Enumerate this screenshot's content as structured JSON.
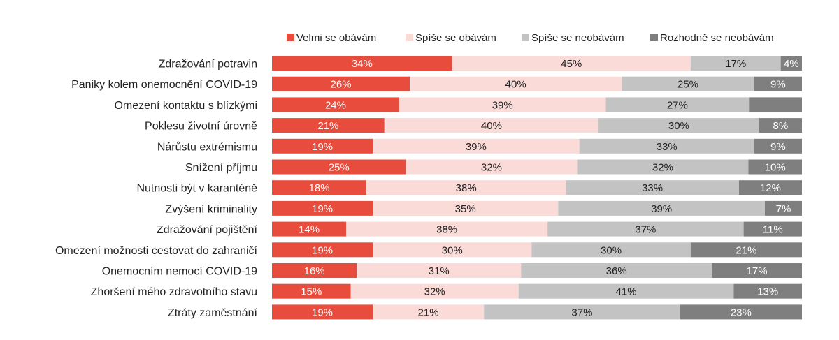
{
  "chart_data": {
    "type": "bar",
    "orientation": "horizontal",
    "stacked": "100%",
    "legend_position": "top",
    "grid": false,
    "categories": [
      "Zdražování potravin",
      "Paniky kolem onemocnění COVID-19",
      "Omezení kontaktu s blízkými",
      "Poklesu životní úrovně",
      "Nárůstu extrémismu",
      "Snížení příjmu",
      "Nutnosti být v karanténě",
      "Zvýšení kriminality",
      "Zdražování pojištění",
      "Omezení možnosti cestovat do zahraničí",
      "Onemocním nemocí COVID-19",
      "Zhoršení mého zdravotního stavu",
      "Ztráty zaměstnání"
    ],
    "series": [
      {
        "name": "Velmi se obávám",
        "color": "#e84c3d",
        "label_color": "#ffffff",
        "values": [
          34,
          26,
          24,
          21,
          19,
          25,
          18,
          19,
          14,
          19,
          16,
          15,
          19
        ],
        "labels": [
          "34%",
          "26%",
          "24%",
          "21%",
          "19%",
          "25%",
          "18%",
          "19%",
          "14%",
          "19%",
          "16%",
          "15%",
          "19%"
        ]
      },
      {
        "name": "Spíše se obávám",
        "color": "#fadbd8",
        "label_color": "#222222",
        "values": [
          45,
          40,
          39,
          40,
          39,
          32,
          38,
          35,
          38,
          30,
          31,
          32,
          21
        ],
        "labels": [
          "45%",
          "40%",
          "39%",
          "40%",
          "39%",
          "32%",
          "38%",
          "35%",
          "38%",
          "30%",
          "31%",
          "32%",
          "21%"
        ]
      },
      {
        "name": "Spíše se neobávám",
        "color": "#c3c3c3",
        "label_color": "#222222",
        "values": [
          17,
          25,
          27,
          30,
          33,
          32,
          33,
          39,
          37,
          30,
          36,
          41,
          37
        ],
        "labels": [
          "17%",
          "25%",
          "27%",
          "30%",
          "33%",
          "32%",
          "33%",
          "39%",
          "37%",
          "30%",
          "36%",
          "41%",
          "37%"
        ]
      },
      {
        "name": "Rozhodně se neobávám",
        "color": "#7f7f7f",
        "label_color": "#ffffff",
        "values": [
          4,
          9,
          10,
          8,
          9,
          10,
          12,
          7,
          11,
          21,
          17,
          13,
          23
        ],
        "labels": [
          "4%",
          "9%",
          "",
          "8%",
          "9%",
          "10%",
          "12%",
          "7%",
          "11%",
          "21%",
          "17%",
          "13%",
          "23%"
        ]
      }
    ]
  }
}
